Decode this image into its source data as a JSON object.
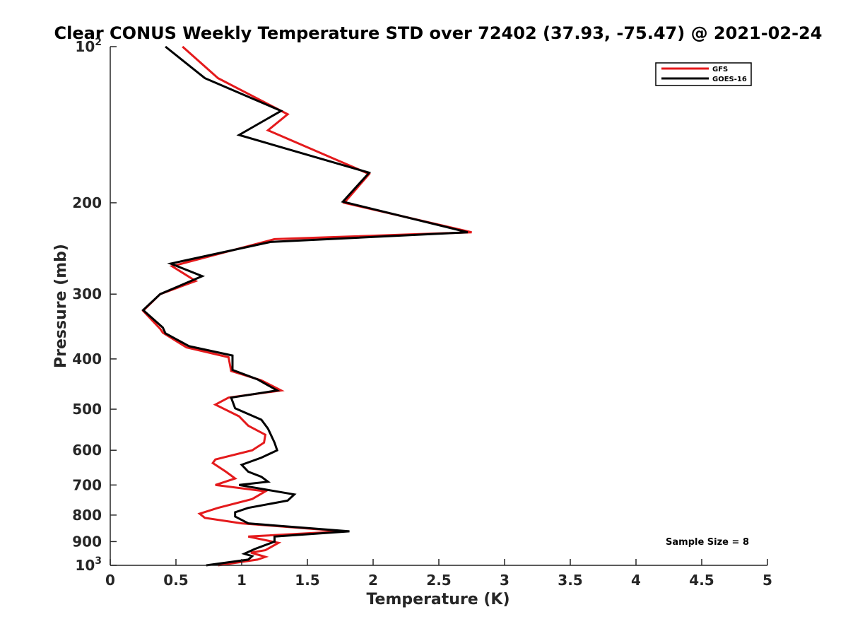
{
  "chart_data": {
    "type": "line",
    "title": "Clear CONUS Weekly Temperature STD over 72402 (37.93, -75.47) @ 2021-02-24",
    "xlabel": "Temperature (K)",
    "ylabel": "Pressure (mb)",
    "xlim": [
      0,
      5
    ],
    "ylim": [
      100,
      1000
    ],
    "y_scale": "log",
    "y_reversed": true,
    "x_ticks": [
      0,
      0.5,
      1,
      1.5,
      2,
      2.5,
      3,
      3.5,
      4,
      4.5,
      5
    ],
    "x_tick_labels": [
      "0",
      "0.5",
      "1",
      "1.5",
      "2",
      "2.5",
      "3",
      "3.5",
      "4",
      "4.5",
      "5"
    ],
    "y_ticks": [
      200,
      300,
      400,
      500,
      600,
      700,
      800,
      900
    ],
    "y_tick_labels": [
      "200",
      "300",
      "400",
      "500",
      "600",
      "700",
      "800",
      "900"
    ],
    "y_tick_power_labels": [
      {
        "value": 100,
        "base": "10",
        "exp": "2"
      },
      {
        "value": 1000,
        "base": "10",
        "exp": "3"
      }
    ],
    "grid": false,
    "legend_position": "top-right",
    "annotation": "Sample Size = 8",
    "series": [
      {
        "name": "GFS",
        "color": "#e41a1c",
        "points": [
          [
            0.55,
            100
          ],
          [
            0.82,
            115
          ],
          [
            1.35,
            135
          ],
          [
            1.2,
            145
          ],
          [
            1.97,
            176
          ],
          [
            1.78,
            200
          ],
          [
            2.75,
            228
          ],
          [
            1.25,
            235
          ],
          [
            0.47,
            265
          ],
          [
            0.65,
            283
          ],
          [
            0.38,
            300
          ],
          [
            0.25,
            323
          ],
          [
            0.38,
            350
          ],
          [
            0.4,
            356
          ],
          [
            0.58,
            380
          ],
          [
            0.9,
            397
          ],
          [
            0.92,
            422
          ],
          [
            1.15,
            440
          ],
          [
            1.3,
            460
          ],
          [
            0.9,
            475
          ],
          [
            0.8,
            490
          ],
          [
            0.98,
            516
          ],
          [
            1.05,
            538
          ],
          [
            1.18,
            560
          ],
          [
            1.17,
            580
          ],
          [
            1.08,
            600
          ],
          [
            0.8,
            625
          ],
          [
            0.78,
            635
          ],
          [
            0.88,
            660
          ],
          [
            0.95,
            680
          ],
          [
            0.8,
            700
          ],
          [
            1.18,
            720
          ],
          [
            1.08,
            745
          ],
          [
            0.82,
            775
          ],
          [
            0.68,
            795
          ],
          [
            0.72,
            810
          ],
          [
            1.0,
            830
          ],
          [
            1.78,
            860
          ],
          [
            1.05,
            880
          ],
          [
            1.28,
            905
          ],
          [
            1.18,
            935
          ],
          [
            1.07,
            945
          ],
          [
            1.18,
            963
          ],
          [
            1.12,
            975
          ],
          [
            0.82,
            1000
          ]
        ]
      },
      {
        "name": "GOES-16",
        "color": "#000000",
        "points": [
          [
            0.42,
            100
          ],
          [
            0.72,
            115
          ],
          [
            1.3,
            133
          ],
          [
            0.98,
            148
          ],
          [
            1.97,
            175
          ],
          [
            1.77,
            199
          ],
          [
            2.72,
            228
          ],
          [
            1.22,
            238
          ],
          [
            0.46,
            262
          ],
          [
            0.7,
            277
          ],
          [
            0.38,
            300
          ],
          [
            0.25,
            322
          ],
          [
            0.4,
            348
          ],
          [
            0.42,
            357
          ],
          [
            0.6,
            378
          ],
          [
            0.93,
            394
          ],
          [
            0.93,
            420
          ],
          [
            1.12,
            438
          ],
          [
            1.27,
            460
          ],
          [
            0.92,
            475
          ],
          [
            0.95,
            498
          ],
          [
            1.15,
            524
          ],
          [
            1.2,
            545
          ],
          [
            1.25,
            580
          ],
          [
            1.27,
            600
          ],
          [
            1.15,
            620
          ],
          [
            1.0,
            640
          ],
          [
            1.05,
            660
          ],
          [
            1.15,
            675
          ],
          [
            1.2,
            690
          ],
          [
            0.98,
            700
          ],
          [
            1.4,
            730
          ],
          [
            1.35,
            750
          ],
          [
            1.05,
            775
          ],
          [
            0.95,
            790
          ],
          [
            0.95,
            805
          ],
          [
            1.05,
            830
          ],
          [
            1.82,
            860
          ],
          [
            1.25,
            880
          ],
          [
            1.25,
            900
          ],
          [
            1.1,
            930
          ],
          [
            1.02,
            950
          ],
          [
            1.08,
            960
          ],
          [
            1.05,
            975
          ],
          [
            0.73,
            1000
          ]
        ]
      }
    ]
  }
}
